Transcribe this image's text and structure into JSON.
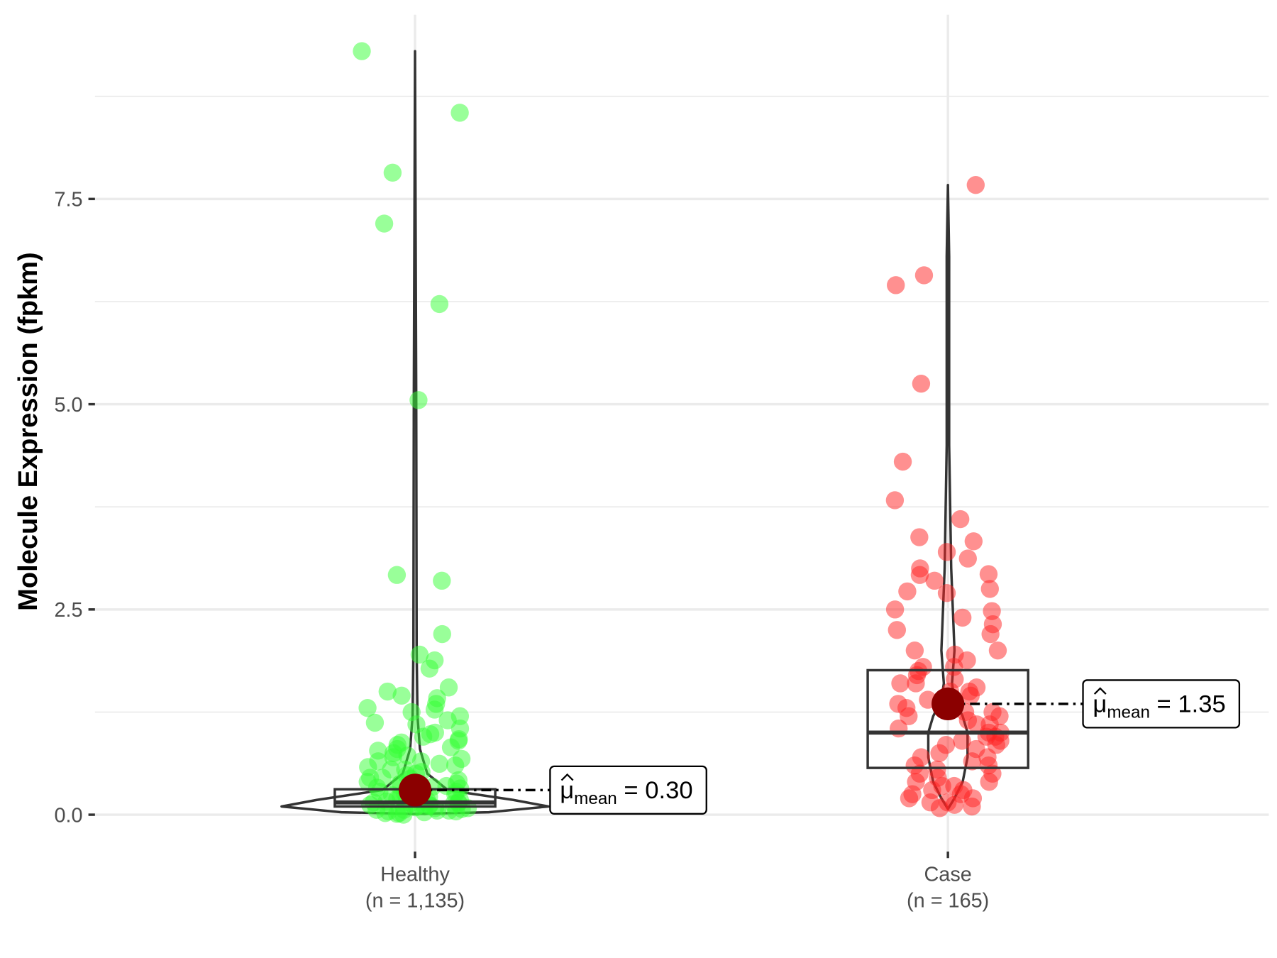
{
  "chart_data": {
    "type": "violin-box-scatter",
    "title": "",
    "xlabel": "",
    "ylabel": "Molecule Expression (fpkm)",
    "ylim": [
      -0.15,
      9.75
    ],
    "yticks": [
      0.0,
      2.5,
      5.0,
      7.5
    ],
    "ytick_labels": [
      "0.0",
      "2.5",
      "5.0",
      "7.5"
    ],
    "grid": true,
    "groups": [
      {
        "name": "Healthy",
        "n_label": "(n = 1,135)",
        "color": "#00ee00",
        "box": {
          "q1": 0.1,
          "median": 0.15,
          "q3": 0.31
        },
        "mean": 0.3,
        "mean_label_mu": "μ",
        "mean_label_sub": "mean",
        "mean_label_value": "= 0.30",
        "max": 9.3,
        "values": [
          9.3,
          8.55,
          7.82,
          7.2,
          6.22,
          5.05,
          2.92,
          2.85,
          2.2,
          1.95,
          1.88,
          1.78,
          1.55,
          1.5,
          1.45,
          1.42,
          1.35,
          1.3,
          1.28,
          1.25,
          1.2,
          1.15,
          1.12,
          1.1,
          1.05,
          1.0,
          0.98,
          0.95,
          0.92,
          0.9,
          0.88,
          0.85,
          0.82,
          0.8,
          0.78,
          0.75,
          0.72,
          0.7,
          0.68,
          0.65,
          0.62,
          0.6,
          0.58,
          0.55,
          0.52,
          0.5,
          0.48,
          0.45,
          0.42,
          0.4,
          0.38,
          0.36,
          0.34,
          0.32,
          0.3,
          0.28,
          0.26,
          0.24,
          0.22,
          0.2,
          0.19,
          0.18,
          0.17,
          0.16,
          0.15,
          0.14,
          0.13,
          0.12,
          0.11,
          0.1,
          0.09,
          0.08,
          0.07,
          0.06,
          0.05,
          0.04,
          0.03,
          0.02,
          0.01,
          0.0,
          0.35,
          0.25,
          0.15,
          0.05,
          0.45,
          0.55,
          0.65,
          0.12,
          0.08,
          0.02,
          0.22,
          0.33,
          0.44,
          0.1,
          0.06,
          0.18,
          0.28,
          0.38,
          0.04,
          0.14
        ]
      },
      {
        "name": "Case",
        "n_label": "(n = 165)",
        "color": "#ff0000",
        "box": {
          "q1": 0.57,
          "median": 1.0,
          "q3": 1.76
        },
        "mean": 1.35,
        "mean_label_mu": "μ",
        "mean_label_sub": "mean",
        "mean_label_value": "= 1.35",
        "max": 7.67,
        "values": [
          7.67,
          6.57,
          6.45,
          5.25,
          4.3,
          3.83,
          3.6,
          3.38,
          3.33,
          3.2,
          3.12,
          3.0,
          2.93,
          2.92,
          2.85,
          2.75,
          2.72,
          2.7,
          2.5,
          2.48,
          2.4,
          2.32,
          2.25,
          2.2,
          2.0,
          2.0,
          1.95,
          1.88,
          1.8,
          1.75,
          1.7,
          1.65,
          1.6,
          1.55,
          1.5,
          1.45,
          1.4,
          1.35,
          1.3,
          1.25,
          1.2,
          1.15,
          1.1,
          1.05,
          1.0,
          0.95,
          0.9,
          0.85,
          0.8,
          0.75,
          0.7,
          0.65,
          0.6,
          0.55,
          0.5,
          0.45,
          0.4,
          0.35,
          0.3,
          0.25,
          0.2,
          0.15,
          0.1,
          0.08,
          1.6,
          1.4,
          1.2,
          1.0,
          0.9,
          0.7,
          0.5,
          0.4,
          0.3,
          0.2,
          0.15,
          1.8,
          1.1,
          0.95,
          0.85,
          0.6,
          0.35,
          0.25,
          1.25,
          1.5,
          0.12
        ]
      }
    ]
  }
}
